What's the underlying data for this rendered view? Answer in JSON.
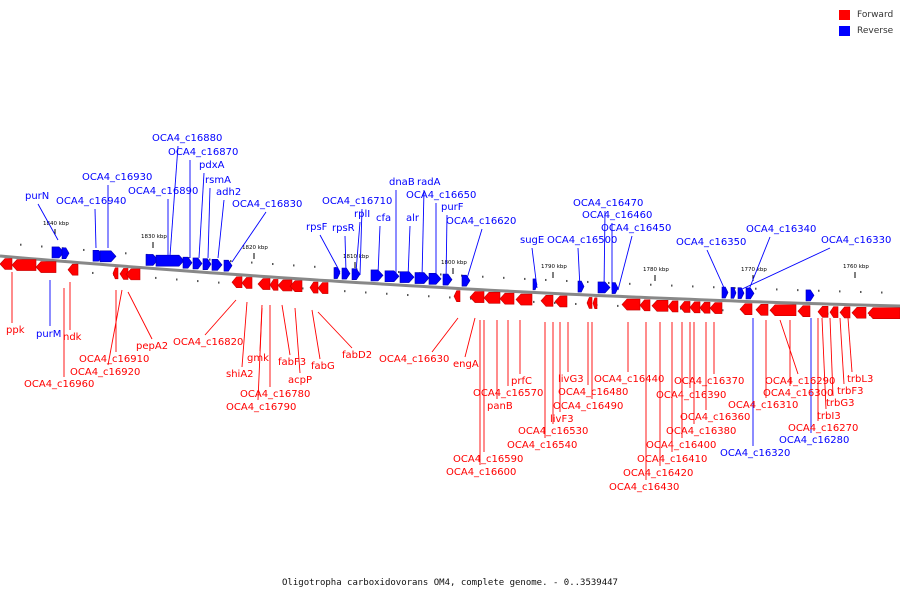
{
  "legend": {
    "forward": {
      "label": "Forward",
      "color": "#ff0000"
    },
    "reverse": {
      "label": "Reverse",
      "color": "#0000ff"
    }
  },
  "colors": {
    "forward": "#ff0000",
    "forward_dark": "#c40000",
    "reverse": "#0000ff",
    "reverse_dark": "#0000b0",
    "backbone": "#888888"
  },
  "caption": "Oligotropha carboxidovorans OM4, complete genome. - 0..3539447",
  "scale_ticks": [
    "1840 kbp",
    "1830 kbp",
    "1820 kbp",
    "1810 kbp",
    "1800 kbp",
    "1790 kbp",
    "1780 kbp",
    "1770 kbp",
    "1760 kbp"
  ],
  "genes_top": [
    "purN",
    "OCA4_c16940",
    "OCA4_c16930",
    "OCA4_c16890",
    "OCA4_c16880",
    "OCA4_c16870",
    "pdxA",
    "rsmA",
    "adh2",
    "OCA4_c16830",
    "rpsF",
    "rpsR",
    "rplI",
    "OCA4_c16710",
    "cfa",
    "dnaB",
    "alr",
    "radA",
    "OCA4_c16650",
    "purF",
    "OCA4_c16620",
    "sugE",
    "OCA4_c16500",
    "OCA4_c16470",
    "OCA4_c16460",
    "OCA4_c16450",
    "OCA4_c16350",
    "OCA4_c16340",
    "OCA4_c16330"
  ],
  "genes_bottom_forward": [
    "ppk",
    "ndk",
    "OCA4_c16960",
    "OCA4_c16910",
    "OCA4_c16920",
    "pepA2",
    "OCA4_c16820",
    "shiA2",
    "gmk",
    "OCA4_c16780",
    "OCA4_c16790",
    "fabF3",
    "acpP",
    "fabG",
    "fabD2",
    "OCA4_c16630",
    "engA",
    "OCA4_c16590",
    "OCA4_c16600",
    "panB",
    "OCA4_c16570",
    "prfC",
    "OCA4_c16540",
    "OCA4_c16530",
    "livF3",
    "livG3",
    "OCA4_c16480",
    "OCA4_c16490",
    "OCA4_c16440",
    "OCA4_c16430",
    "OCA4_c16420",
    "OCA4_c16410",
    "OCA4_c16400",
    "OCA4_c16380",
    "OCA4_c16390",
    "OCA4_c16360",
    "OCA4_c16370",
    "OCA4_c16310",
    "OCA4_c16300",
    "OCA4_c16290",
    "trbI3",
    "OCA4_c16270",
    "trbG3",
    "trbF3",
    "trbL3"
  ],
  "genes_bottom_reverse": [
    "purM",
    "OCA4_c16320",
    "OCA4_c16280"
  ]
}
